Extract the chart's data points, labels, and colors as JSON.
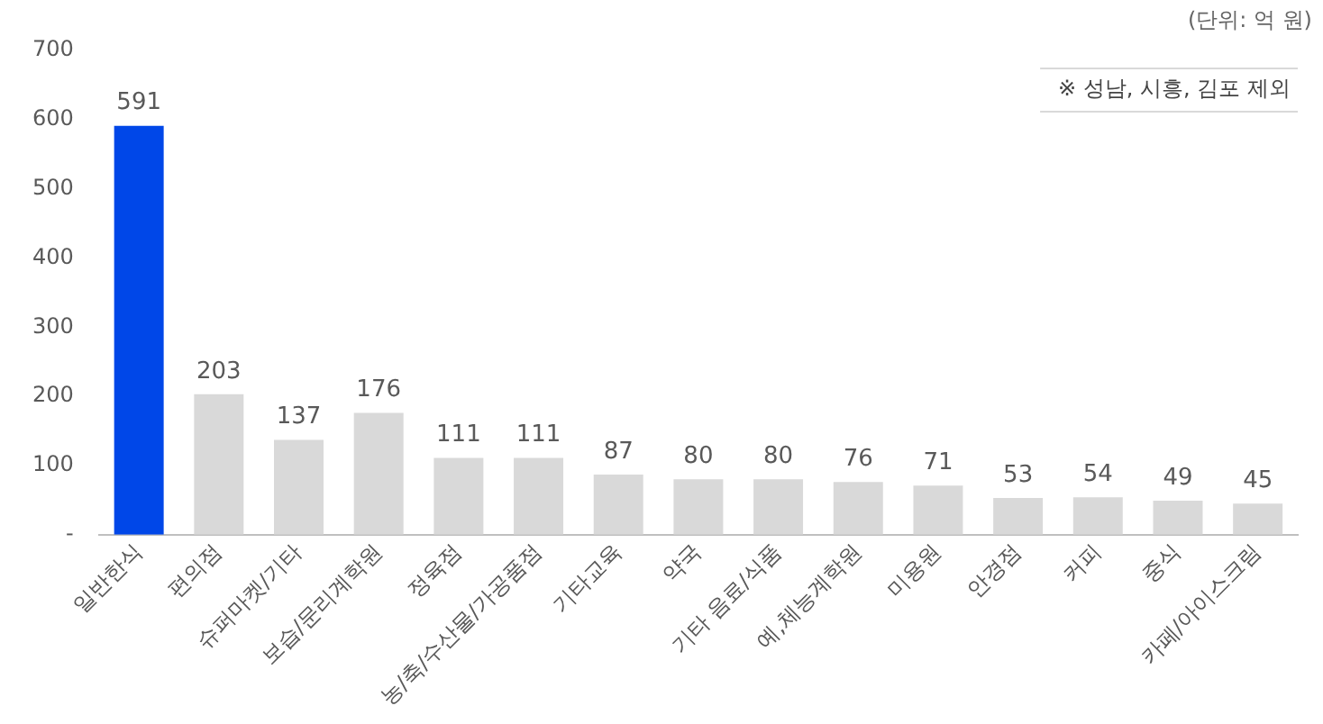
{
  "chart_data": {
    "type": "bar",
    "categories": [
      "일반한식",
      "편의점",
      "슈퍼마켓/기타",
      "보습/문리계학원",
      "정육점",
      "농/축/수산물/가공품점",
      "기타교육",
      "약국",
      "기타 음료/식품",
      "예,체능계학원",
      "미용원",
      "안경점",
      "커피",
      "중식",
      "카페/아이스크림"
    ],
    "values": [
      591,
      203,
      137,
      176,
      111,
      111,
      87,
      80,
      80,
      76,
      71,
      53,
      54,
      49,
      45
    ],
    "colors": [
      "#0047e8",
      "#d9d9d9",
      "#d9d9d9",
      "#d9d9d9",
      "#d9d9d9",
      "#d9d9d9",
      "#d9d9d9",
      "#d9d9d9",
      "#d9d9d9",
      "#d9d9d9",
      "#d9d9d9",
      "#d9d9d9",
      "#d9d9d9",
      "#d9d9d9",
      "#d9d9d9"
    ],
    "ylim": [
      0,
      700
    ],
    "yticks": [
      {
        "value": 0,
        "label": "-"
      },
      100,
      200,
      300,
      400,
      500,
      600,
      700
    ],
    "data_labels": true,
    "grid": false,
    "legend": false,
    "annotations": [
      "(단위: 억 원)",
      "※ 성남, 시흥, 김포 제외"
    ]
  }
}
